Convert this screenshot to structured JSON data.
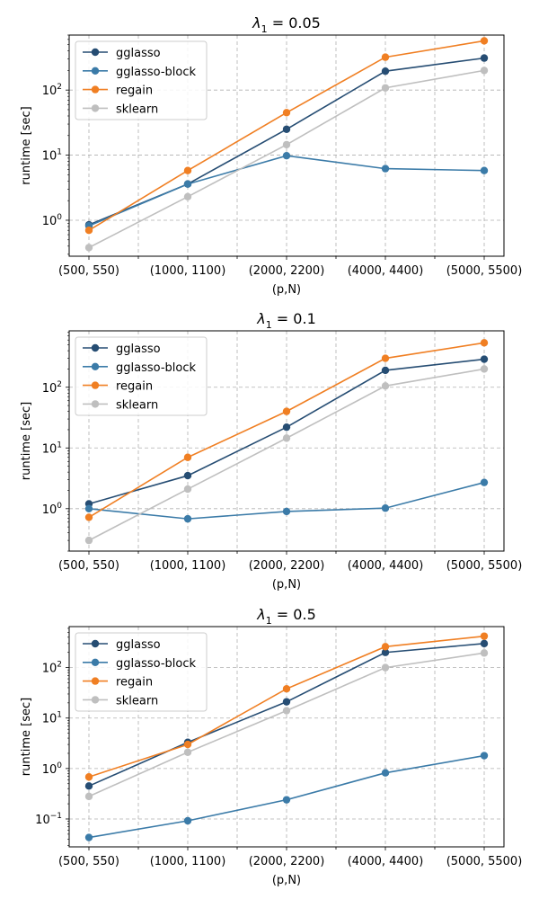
{
  "chart_data": [
    {
      "type": "line",
      "title": "λ1 = 0.05",
      "title_main": "λ",
      "title_sub": "1",
      "title_rest": " = 0.05",
      "xlabel": "(p,N)",
      "ylabel": "runtime [sec]",
      "yscale": "log",
      "grid": true,
      "legend_position": "top-left",
      "categories": [
        "(500, 550)",
        "(1000, 1100)",
        "(2000, 2200)",
        "(4000, 4400)",
        "(5000, 5500)"
      ],
      "ylim": [
        0.28,
        700
      ],
      "yticks": [
        {
          "mant": "10",
          "exp": "0"
        },
        {
          "mant": "10",
          "exp": "1"
        },
        {
          "mant": "10",
          "exp": "2"
        }
      ],
      "series": [
        {
          "name": "gglasso",
          "color": "#264d73",
          "values": [
            0.85,
            3.6,
            25,
            195,
            310
          ]
        },
        {
          "name": "gglasso-block",
          "color": "#3b7ba8",
          "values": [
            0.82,
            3.6,
            9.8,
            6.2,
            5.8
          ]
        },
        {
          "name": "regain",
          "color": "#f07f23",
          "values": [
            0.7,
            5.8,
            45,
            320,
            570
          ]
        },
        {
          "name": "sklearn",
          "color": "#bfbfbf",
          "values": [
            0.38,
            2.3,
            14.5,
            108,
            200
          ]
        }
      ]
    },
    {
      "type": "line",
      "title": "λ1 = 0.1",
      "title_main": "λ",
      "title_sub": "1",
      "title_rest": " = 0.1",
      "xlabel": "(p,N)",
      "ylabel": "runtime [sec]",
      "yscale": "log",
      "grid": true,
      "legend_position": "top-left",
      "categories": [
        "(500, 550)",
        "(1000, 1100)",
        "(2000, 2200)",
        "(4000, 4400)",
        "(5000, 5500)"
      ],
      "ylim": [
        0.2,
        850
      ],
      "yticks": [
        {
          "mant": "10",
          "exp": "0"
        },
        {
          "mant": "10",
          "exp": "1"
        },
        {
          "mant": "10",
          "exp": "2"
        }
      ],
      "series": [
        {
          "name": "gglasso",
          "color": "#264d73",
          "values": [
            1.2,
            3.5,
            22,
            190,
            290
          ]
        },
        {
          "name": "gglasso-block",
          "color": "#3b7ba8",
          "values": [
            1.0,
            0.68,
            0.9,
            1.02,
            2.7
          ]
        },
        {
          "name": "regain",
          "color": "#f07f23",
          "values": [
            0.72,
            7,
            40,
            300,
            540
          ]
        },
        {
          "name": "sklearn",
          "color": "#bfbfbf",
          "values": [
            0.3,
            2.1,
            14.5,
            105,
            200
          ]
        }
      ]
    },
    {
      "type": "line",
      "title": "λ1 = 0.5",
      "title_main": "λ",
      "title_sub": "1",
      "title_rest": " = 0.5",
      "xlabel": "(p,N)",
      "ylabel": "runtime [sec]",
      "yscale": "log",
      "grid": true,
      "legend_position": "top-left",
      "categories": [
        "(500, 550)",
        "(1000, 1100)",
        "(2000, 2200)",
        "(4000, 4400)",
        "(5000, 5500)"
      ],
      "ylim": [
        0.028,
        650
      ],
      "yticks": [
        {
          "mant": "10",
          "exp": "−1"
        },
        {
          "mant": "10",
          "exp": "0"
        },
        {
          "mant": "10",
          "exp": "1"
        },
        {
          "mant": "10",
          "exp": "2"
        }
      ],
      "series": [
        {
          "name": "gglasso",
          "color": "#264d73",
          "values": [
            0.45,
            3.3,
            21,
            200,
            300
          ]
        },
        {
          "name": "gglasso-block",
          "color": "#3b7ba8",
          "values": [
            0.043,
            0.092,
            0.24,
            0.82,
            1.8
          ]
        },
        {
          "name": "regain",
          "color": "#f07f23",
          "values": [
            0.68,
            3.0,
            38,
            260,
            420
          ]
        },
        {
          "name": "sklearn",
          "color": "#bfbfbf",
          "values": [
            0.28,
            2.1,
            14,
            100,
            195
          ]
        }
      ]
    }
  ]
}
